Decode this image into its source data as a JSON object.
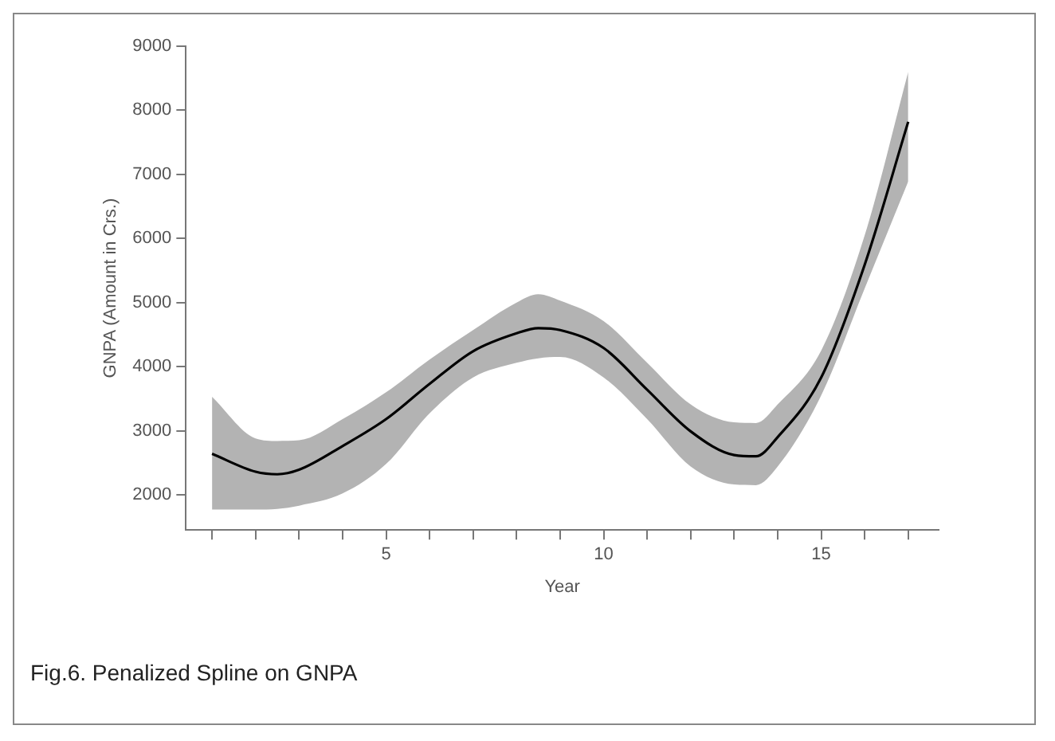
{
  "chart_data": {
    "type": "line",
    "xlabel": "Year",
    "ylabel": "GNPA (Amount in Crs.)",
    "x": [
      1,
      2,
      2.5,
      3,
      4,
      5,
      6,
      7,
      8,
      8.5,
      9,
      10,
      11,
      12,
      13,
      13.5,
      14,
      15,
      16,
      17
    ],
    "series": [
      {
        "color": "#000000",
        "values": [
          2640,
          2360,
          2320,
          2390,
          2760,
          3180,
          3730,
          4240,
          4520,
          4600,
          4570,
          4290,
          3640,
          2990,
          2620,
          2600,
          2900,
          3830,
          5590,
          7820
        ],
        "lower": [
          1770,
          1770,
          1780,
          1830,
          2020,
          2480,
          3270,
          3830,
          4060,
          4130,
          4150,
          3830,
          3180,
          2440,
          2160,
          2150,
          2440,
          3550,
          5220,
          6890
        ],
        "upper": [
          3530,
          2880,
          2840,
          2850,
          3180,
          3600,
          4110,
          4570,
          5000,
          5130,
          5030,
          4710,
          4060,
          3410,
          3130,
          3120,
          3410,
          4250,
          6050,
          8600
        ]
      }
    ],
    "xlim": [
      0.4,
      17.7
    ],
    "ylim": [
      1450,
      9000
    ],
    "xticks": [
      {
        "value": 1,
        "label": null
      },
      {
        "value": 2,
        "label": null
      },
      {
        "value": 3,
        "label": null
      },
      {
        "value": 4,
        "label": null
      },
      5,
      {
        "value": 6,
        "label": null
      },
      {
        "value": 7,
        "label": null
      },
      {
        "value": 8,
        "label": null
      },
      {
        "value": 9,
        "label": null
      },
      10,
      {
        "value": 11,
        "label": null
      },
      {
        "value": 12,
        "label": null
      },
      {
        "value": 13,
        "label": null
      },
      {
        "value": 14,
        "label": null
      },
      15,
      {
        "value": 16,
        "label": null
      },
      {
        "value": 17,
        "label": null
      }
    ],
    "yticks": [
      2000,
      3000,
      4000,
      5000,
      6000,
      7000,
      8000,
      9000
    ],
    "grid": false,
    "legend": false,
    "marker": "none",
    "line_style": "solid",
    "annotations": [
      "Fig.6. Penalized Spline on GNPA"
    ]
  }
}
